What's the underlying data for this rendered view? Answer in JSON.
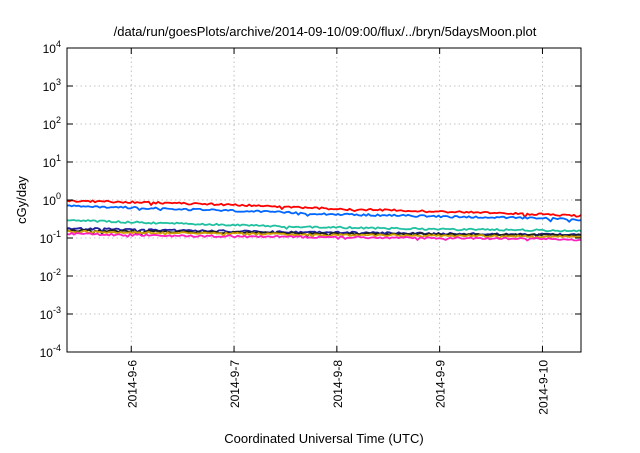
{
  "chart_data": {
    "type": "line",
    "title": "/data/run/goesPlots/archive/2014-09-10/09:00/flux/../bryn/5daysMoon.plot",
    "xlabel": "Coordinated Universal Time (UTC)",
    "ylabel": "cGy/day",
    "yscale": "log",
    "ylim": [
      0.0001,
      10000
    ],
    "xlim": [
      "2014-09-05 09:00",
      "2014-09-10 09:00"
    ],
    "grid": true,
    "legend": "none",
    "y_ticks": [
      {
        "value": 0.0001,
        "base": "10",
        "exp": "-4"
      },
      {
        "value": 0.001,
        "base": "10",
        "exp": "-3"
      },
      {
        "value": 0.01,
        "base": "10",
        "exp": "-2"
      },
      {
        "value": 0.1,
        "base": "10",
        "exp": "-1"
      },
      {
        "value": 1,
        "base": "10",
        "exp": "0"
      },
      {
        "value": 10,
        "base": "10",
        "exp": "1"
      },
      {
        "value": 100,
        "base": "10",
        "exp": "2"
      },
      {
        "value": 1000,
        "base": "10",
        "exp": "3"
      },
      {
        "value": 10000,
        "base": "10",
        "exp": "4"
      }
    ],
    "x_ticks": [
      "2014-9-6",
      "2014-9-7",
      "2014-9-8",
      "2014-9-9",
      "2014-9-10"
    ],
    "x_tick_dates": [
      "2014-09-06",
      "2014-09-07",
      "2014-09-08",
      "2014-09-09",
      "2014-09-10"
    ],
    "series": [
      {
        "color": "#ff0000",
        "x": [
          "2014-09-05 09:00",
          "2014-09-06 00:00",
          "2014-09-07 00:00",
          "2014-09-08 00:00",
          "2014-09-09 00:00",
          "2014-09-10 00:00",
          "2014-09-10 09:00"
        ],
        "values": [
          0.95,
          0.88,
          0.75,
          0.58,
          0.5,
          0.42,
          0.38
        ]
      },
      {
        "color": "#0066ff",
        "x": [
          "2014-09-05 09:00",
          "2014-09-06 00:00",
          "2014-09-07 00:00",
          "2014-09-08 00:00",
          "2014-09-09 00:00",
          "2014-09-10 00:00",
          "2014-09-10 09:00"
        ],
        "values": [
          0.7,
          0.63,
          0.52,
          0.42,
          0.37,
          0.33,
          0.3
        ]
      },
      {
        "color": "#20c0a0",
        "x": [
          "2014-09-05 09:00",
          "2014-09-06 00:00",
          "2014-09-07 00:00",
          "2014-09-08 00:00",
          "2014-09-09 00:00",
          "2014-09-10 00:00",
          "2014-09-10 09:00"
        ],
        "values": [
          0.29,
          0.26,
          0.22,
          0.19,
          0.17,
          0.16,
          0.15
        ]
      },
      {
        "color": "#2020a0",
        "x": [
          "2014-09-05 09:00",
          "2014-09-06 00:00",
          "2014-09-07 00:00",
          "2014-09-08 00:00",
          "2014-09-09 00:00",
          "2014-09-10 00:00",
          "2014-09-10 09:00"
        ],
        "values": [
          0.18,
          0.165,
          0.15,
          0.14,
          0.13,
          0.125,
          0.12
        ]
      },
      {
        "color": "#202020",
        "x": [
          "2014-09-05 09:00",
          "2014-09-06 00:00",
          "2014-09-07 00:00",
          "2014-09-08 00:00",
          "2014-09-09 00:00",
          "2014-09-10 00:00",
          "2014-09-10 09:00"
        ],
        "values": [
          0.16,
          0.15,
          0.14,
          0.13,
          0.125,
          0.12,
          0.115
        ]
      },
      {
        "color": "#d0a000",
        "x": [
          "2014-09-05 09:00",
          "2014-09-06 00:00",
          "2014-09-07 00:00",
          "2014-09-08 00:00",
          "2014-09-09 00:00",
          "2014-09-10 00:00",
          "2014-09-10 09:00"
        ],
        "values": [
          0.15,
          0.14,
          0.13,
          0.12,
          0.115,
          0.11,
          0.105
        ]
      },
      {
        "color": "#ff20c0",
        "x": [
          "2014-09-05 09:00",
          "2014-09-06 00:00",
          "2014-09-07 00:00",
          "2014-09-08 00:00",
          "2014-09-09 00:00",
          "2014-09-10 00:00",
          "2014-09-10 09:00"
        ],
        "values": [
          0.13,
          0.12,
          0.11,
          0.105,
          0.1,
          0.095,
          0.09
        ]
      }
    ]
  }
}
